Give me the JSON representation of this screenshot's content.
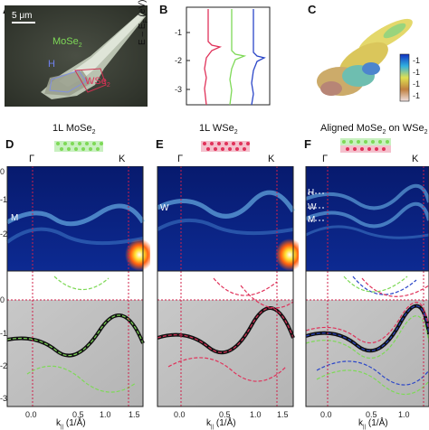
{
  "panels": {
    "A": {
      "letter": "A",
      "scale_bar": "5 μm",
      "label_mose2": "MoSe",
      "sub_mose2": "2",
      "label_h": "H",
      "label_wse2": "WSe",
      "sub_wse2": "2"
    },
    "B": {
      "letter": "B",
      "ylabel_main": "E – E",
      "ylabel_sub": "F",
      "ylabel_unit": " (eV)",
      "yticks": [
        "-1",
        "-2",
        "-3"
      ]
    },
    "C": {
      "letter": "C",
      "colorbar_ticks": [
        "-1",
        "-1",
        "-1",
        "-1"
      ]
    },
    "D": {
      "letter": "D",
      "title_main": "1L MoSe",
      "title_sub": "2",
      "gamma": "Γ",
      "k": "K",
      "band_label": "M",
      "yticks": [
        "0",
        "-1",
        "-2",
        "-3"
      ],
      "xticks": [
        "0.0",
        "0.5",
        "1.0",
        "1.5"
      ]
    },
    "E": {
      "letter": "E",
      "title_main": "1L WSe",
      "title_sub": "2",
      "gamma": "Γ",
      "k": "K",
      "band_label": "W",
      "xticks": [
        "0.0",
        "0.5",
        "1.0",
        "1.5"
      ]
    },
    "F": {
      "letter": "F",
      "title_main": "Aligned MoSe",
      "title_sub": "2",
      "title_rest": " on WSe",
      "title_sub2": "2",
      "gamma": "Γ",
      "k": "K",
      "band_labels": [
        "H",
        "W",
        "M"
      ],
      "xticks": [
        "0.0",
        "0.5",
        "1.0"
      ]
    }
  },
  "xaxis": {
    "main": "k",
    "sub": "||",
    "unit": " (1/Å)"
  },
  "colors": {
    "arpes_bg": "#0b1e78",
    "arpes_band": "#7fd3ff",
    "mose2": "#7ed957",
    "wse2": "#e0325a",
    "hetero": "#2b46c8",
    "guide": "#d0204a"
  }
}
